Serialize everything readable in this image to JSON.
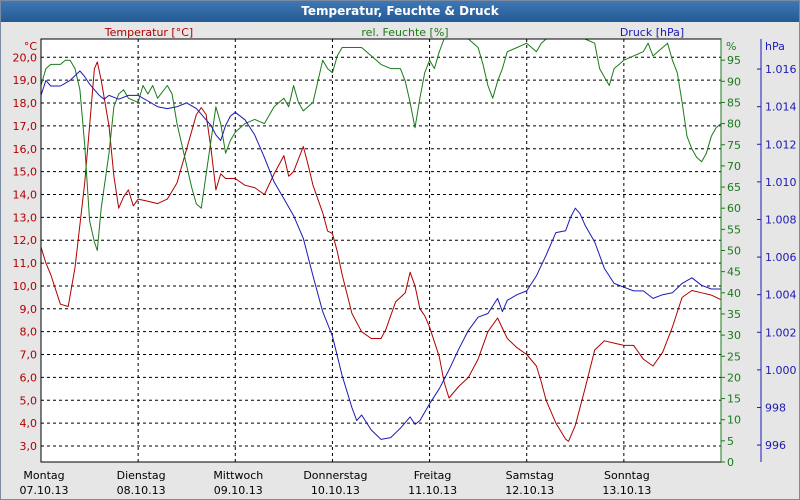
{
  "window": {
    "title": "Temperatur, Feuchte & Druck"
  },
  "colors": {
    "temperature": "#b00000",
    "humidity": "#1a7a1a",
    "pressure": "#1a1ab4",
    "grid": "#000000",
    "plot_bg": "#ffffff"
  },
  "chart_data": {
    "type": "line",
    "title": "Temperatur, Feuchte & Druck",
    "x_days": [
      {
        "day": "Montag",
        "date": "07.10.13"
      },
      {
        "day": "Dienstag",
        "date": "08.10.13"
      },
      {
        "day": "Mittwoch",
        "date": "09.10.13"
      },
      {
        "day": "Donnerstag",
        "date": "10.10.13"
      },
      {
        "day": "Freitag",
        "date": "11.10.13"
      },
      {
        "day": "Samstag",
        "date": "12.10.13"
      },
      {
        "day": "Sonntag",
        "date": "13.10.13"
      }
    ],
    "x_range_days": [
      0,
      7
    ],
    "axes": {
      "temperature": {
        "label": "Temperatur [°C]",
        "unit": "°C",
        "range": [
          2.3,
          20.8
        ],
        "ticks": [
          "3,0",
          "4,0",
          "5,0",
          "6,0",
          "7,0",
          "8,0",
          "9,0",
          "10,0",
          "11,0",
          "12,0",
          "13,0",
          "14,0",
          "15,0",
          "16,0",
          "17,0",
          "18,0",
          "19,0",
          "20,0"
        ]
      },
      "humidity": {
        "label": "rel. Feuchte [%]",
        "unit": "%",
        "range": [
          0,
          100
        ],
        "ticks": [
          "0",
          "5",
          "10",
          "15",
          "20",
          "25",
          "30",
          "35",
          "40",
          "45",
          "50",
          "55",
          "60",
          "65",
          "70",
          "75",
          "80",
          "85",
          "90",
          "95"
        ]
      },
      "pressure": {
        "label": "Druck [hPa]",
        "unit": "hPa",
        "range": [
          995.1,
          1017.6
        ],
        "ticks": [
          "996",
          "998",
          "1.000",
          "1.002",
          "1.004",
          "1.006",
          "1.008",
          "1.010",
          "1.012",
          "1.014",
          "1.016"
        ]
      }
    },
    "series": [
      {
        "name": "Temperatur [°C]",
        "axis": "temperature",
        "points": [
          [
            0,
            11.7
          ],
          [
            0.05,
            11.0
          ],
          [
            0.1,
            10.5
          ],
          [
            0.2,
            9.2
          ],
          [
            0.28,
            9.1
          ],
          [
            0.35,
            10.8
          ],
          [
            0.45,
            14.5
          ],
          [
            0.5,
            17.0
          ],
          [
            0.55,
            19.5
          ],
          [
            0.58,
            19.8
          ],
          [
            0.62,
            19.0
          ],
          [
            0.7,
            17.0
          ],
          [
            0.75,
            14.8
          ],
          [
            0.8,
            13.4
          ],
          [
            0.85,
            13.9
          ],
          [
            0.9,
            14.2
          ],
          [
            0.95,
            13.5
          ],
          [
            1.0,
            13.8
          ],
          [
            1.1,
            13.7
          ],
          [
            1.2,
            13.6
          ],
          [
            1.3,
            13.8
          ],
          [
            1.4,
            14.5
          ],
          [
            1.5,
            16.0
          ],
          [
            1.6,
            17.5
          ],
          [
            1.65,
            17.8
          ],
          [
            1.7,
            17.5
          ],
          [
            1.75,
            16.0
          ],
          [
            1.8,
            14.2
          ],
          [
            1.85,
            14.9
          ],
          [
            1.9,
            14.7
          ],
          [
            2.0,
            14.7
          ],
          [
            2.1,
            14.4
          ],
          [
            2.2,
            14.3
          ],
          [
            2.3,
            14.0
          ],
          [
            2.4,
            14.9
          ],
          [
            2.5,
            15.7
          ],
          [
            2.55,
            14.8
          ],
          [
            2.6,
            15.0
          ],
          [
            2.7,
            16.1
          ],
          [
            2.75,
            15.3
          ],
          [
            2.8,
            14.4
          ],
          [
            2.9,
            13.2
          ],
          [
            2.95,
            12.4
          ],
          [
            3.0,
            12.3
          ],
          [
            3.05,
            11.5
          ],
          [
            3.1,
            10.5
          ],
          [
            3.2,
            8.8
          ],
          [
            3.3,
            8.0
          ],
          [
            3.4,
            7.7
          ],
          [
            3.5,
            7.7
          ],
          [
            3.55,
            8.1
          ],
          [
            3.6,
            8.7
          ],
          [
            3.65,
            9.3
          ],
          [
            3.75,
            9.7
          ],
          [
            3.8,
            10.6
          ],
          [
            3.85,
            10.0
          ],
          [
            3.9,
            9.0
          ],
          [
            3.95,
            8.7
          ],
          [
            4.0,
            8.2
          ],
          [
            4.1,
            6.9
          ],
          [
            4.15,
            5.8
          ],
          [
            4.2,
            5.1
          ],
          [
            4.3,
            5.6
          ],
          [
            4.4,
            6.0
          ],
          [
            4.5,
            6.8
          ],
          [
            4.6,
            8.0
          ],
          [
            4.7,
            8.6
          ],
          [
            4.8,
            7.7
          ],
          [
            4.9,
            7.3
          ],
          [
            5.0,
            7.0
          ],
          [
            5.1,
            6.5
          ],
          [
            5.15,
            5.8
          ],
          [
            5.2,
            5.0
          ],
          [
            5.3,
            4.0
          ],
          [
            5.4,
            3.3
          ],
          [
            5.43,
            3.2
          ],
          [
            5.5,
            3.9
          ],
          [
            5.6,
            5.5
          ],
          [
            5.7,
            7.2
          ],
          [
            5.8,
            7.6
          ],
          [
            5.9,
            7.5
          ],
          [
            6.0,
            7.4
          ],
          [
            6.1,
            7.4
          ],
          [
            6.2,
            6.8
          ],
          [
            6.3,
            6.5
          ],
          [
            6.4,
            7.1
          ],
          [
            6.5,
            8.2
          ],
          [
            6.6,
            9.5
          ],
          [
            6.7,
            9.8
          ],
          [
            6.8,
            9.7
          ],
          [
            6.9,
            9.6
          ],
          [
            7.0,
            9.4
          ]
        ]
      },
      {
        "name": "rel. Feuchte [%]",
        "axis": "humidity",
        "points": [
          [
            0,
            89
          ],
          [
            0.05,
            93
          ],
          [
            0.1,
            94
          ],
          [
            0.2,
            94
          ],
          [
            0.25,
            95
          ],
          [
            0.3,
            95
          ],
          [
            0.35,
            93
          ],
          [
            0.4,
            88
          ],
          [
            0.45,
            75
          ],
          [
            0.5,
            57
          ],
          [
            0.55,
            52
          ],
          [
            0.58,
            50
          ],
          [
            0.62,
            60
          ],
          [
            0.7,
            73
          ],
          [
            0.75,
            84
          ],
          [
            0.8,
            87
          ],
          [
            0.85,
            88
          ],
          [
            0.9,
            86
          ],
          [
            1.0,
            85
          ],
          [
            1.05,
            89
          ],
          [
            1.1,
            87
          ],
          [
            1.15,
            89
          ],
          [
            1.2,
            86
          ],
          [
            1.3,
            89
          ],
          [
            1.35,
            87
          ],
          [
            1.4,
            80
          ],
          [
            1.5,
            70
          ],
          [
            1.55,
            65
          ],
          [
            1.6,
            61
          ],
          [
            1.65,
            60
          ],
          [
            1.7,
            68
          ],
          [
            1.75,
            76
          ],
          [
            1.8,
            84
          ],
          [
            1.85,
            80
          ],
          [
            1.9,
            73
          ],
          [
            1.95,
            76
          ],
          [
            2.0,
            78
          ],
          [
            2.1,
            80
          ],
          [
            2.2,
            81
          ],
          [
            2.3,
            80
          ],
          [
            2.4,
            84
          ],
          [
            2.5,
            86
          ],
          [
            2.55,
            84
          ],
          [
            2.6,
            89
          ],
          [
            2.65,
            85
          ],
          [
            2.7,
            83
          ],
          [
            2.8,
            85
          ],
          [
            2.85,
            90
          ],
          [
            2.9,
            95
          ],
          [
            2.95,
            93
          ],
          [
            3.0,
            92
          ],
          [
            3.05,
            96
          ],
          [
            3.1,
            98
          ],
          [
            3.2,
            98
          ],
          [
            3.3,
            98
          ],
          [
            3.4,
            96
          ],
          [
            3.5,
            94
          ],
          [
            3.6,
            93
          ],
          [
            3.7,
            93
          ],
          [
            3.75,
            90
          ],
          [
            3.8,
            85
          ],
          [
            3.85,
            79
          ],
          [
            3.9,
            86
          ],
          [
            3.95,
            92
          ],
          [
            4.0,
            95
          ],
          [
            4.05,
            93
          ],
          [
            4.1,
            97
          ],
          [
            4.15,
            100
          ],
          [
            4.2,
            100
          ],
          [
            4.3,
            100
          ],
          [
            4.4,
            100
          ],
          [
            4.5,
            98
          ],
          [
            4.55,
            94
          ],
          [
            4.6,
            89
          ],
          [
            4.65,
            86
          ],
          [
            4.7,
            90
          ],
          [
            4.75,
            93
          ],
          [
            4.8,
            97
          ],
          [
            4.9,
            98
          ],
          [
            5.0,
            99
          ],
          [
            5.1,
            97
          ],
          [
            5.15,
            99
          ],
          [
            5.2,
            100
          ],
          [
            5.3,
            100
          ],
          [
            5.4,
            100
          ],
          [
            5.5,
            100
          ],
          [
            5.6,
            100
          ],
          [
            5.7,
            99
          ],
          [
            5.75,
            93
          ],
          [
            5.8,
            91
          ],
          [
            5.85,
            89
          ],
          [
            5.9,
            93
          ],
          [
            6.0,
            95
          ],
          [
            6.1,
            96
          ],
          [
            6.2,
            97
          ],
          [
            6.25,
            99
          ],
          [
            6.3,
            96
          ],
          [
            6.4,
            98
          ],
          [
            6.45,
            99
          ],
          [
            6.5,
            95
          ],
          [
            6.55,
            92
          ],
          [
            6.6,
            85
          ],
          [
            6.65,
            77
          ],
          [
            6.7,
            74
          ],
          [
            6.75,
            72
          ],
          [
            6.8,
            71
          ],
          [
            6.85,
            73
          ],
          [
            6.9,
            77
          ],
          [
            6.95,
            79
          ],
          [
            7.0,
            80
          ]
        ]
      },
      {
        "name": "Druck [hPa]",
        "axis": "pressure",
        "points": [
          [
            0,
            1014.6
          ],
          [
            0.05,
            1015.4
          ],
          [
            0.1,
            1015.1
          ],
          [
            0.2,
            1015.1
          ],
          [
            0.3,
            1015.4
          ],
          [
            0.4,
            1015.9
          ],
          [
            0.45,
            1015.6
          ],
          [
            0.5,
            1015.2
          ],
          [
            0.6,
            1014.6
          ],
          [
            0.65,
            1014.4
          ],
          [
            0.7,
            1014.6
          ],
          [
            0.75,
            1014.5
          ],
          [
            0.8,
            1014.4
          ],
          [
            0.9,
            1014.6
          ],
          [
            1.0,
            1014.6
          ],
          [
            1.1,
            1014.3
          ],
          [
            1.2,
            1014.0
          ],
          [
            1.3,
            1013.9
          ],
          [
            1.4,
            1014.0
          ],
          [
            1.5,
            1014.2
          ],
          [
            1.6,
            1013.9
          ],
          [
            1.7,
            1013.3
          ],
          [
            1.75,
            1013.0
          ],
          [
            1.8,
            1012.5
          ],
          [
            1.85,
            1012.2
          ],
          [
            1.9,
            1013.0
          ],
          [
            1.95,
            1013.5
          ],
          [
            2.0,
            1013.7
          ],
          [
            2.1,
            1013.3
          ],
          [
            2.2,
            1012.5
          ],
          [
            2.3,
            1011.3
          ],
          [
            2.4,
            1010.0
          ],
          [
            2.5,
            1009.1
          ],
          [
            2.6,
            1008.2
          ],
          [
            2.7,
            1007.0
          ],
          [
            2.8,
            1005.0
          ],
          [
            2.9,
            1003.1
          ],
          [
            3.0,
            1001.8
          ],
          [
            3.1,
            999.7
          ],
          [
            3.2,
            998.0
          ],
          [
            3.25,
            997.3
          ],
          [
            3.3,
            997.6
          ],
          [
            3.4,
            996.8
          ],
          [
            3.5,
            996.3
          ],
          [
            3.6,
            996.4
          ],
          [
            3.7,
            996.9
          ],
          [
            3.8,
            997.5
          ],
          [
            3.85,
            997.1
          ],
          [
            3.9,
            997.3
          ],
          [
            4.0,
            998.2
          ],
          [
            4.1,
            999.0
          ],
          [
            4.2,
            1000.0
          ],
          [
            4.3,
            1001.1
          ],
          [
            4.4,
            1002.1
          ],
          [
            4.5,
            1002.8
          ],
          [
            4.6,
            1003.0
          ],
          [
            4.7,
            1003.8
          ],
          [
            4.75,
            1003.1
          ],
          [
            4.8,
            1003.7
          ],
          [
            4.9,
            1004.0
          ],
          [
            5.0,
            1004.2
          ],
          [
            5.1,
            1005.0
          ],
          [
            5.2,
            1006.1
          ],
          [
            5.3,
            1007.3
          ],
          [
            5.4,
            1007.4
          ],
          [
            5.45,
            1008.1
          ],
          [
            5.5,
            1008.6
          ],
          [
            5.55,
            1008.3
          ],
          [
            5.6,
            1007.7
          ],
          [
            5.7,
            1006.8
          ],
          [
            5.8,
            1005.4
          ],
          [
            5.9,
            1004.6
          ],
          [
            6.0,
            1004.4
          ],
          [
            6.1,
            1004.2
          ],
          [
            6.2,
            1004.2
          ],
          [
            6.3,
            1003.8
          ],
          [
            6.4,
            1004.0
          ],
          [
            6.5,
            1004.1
          ],
          [
            6.6,
            1004.6
          ],
          [
            6.7,
            1004.9
          ],
          [
            6.8,
            1004.5
          ],
          [
            6.9,
            1004.3
          ],
          [
            7.0,
            1004.3
          ]
        ]
      }
    ]
  }
}
